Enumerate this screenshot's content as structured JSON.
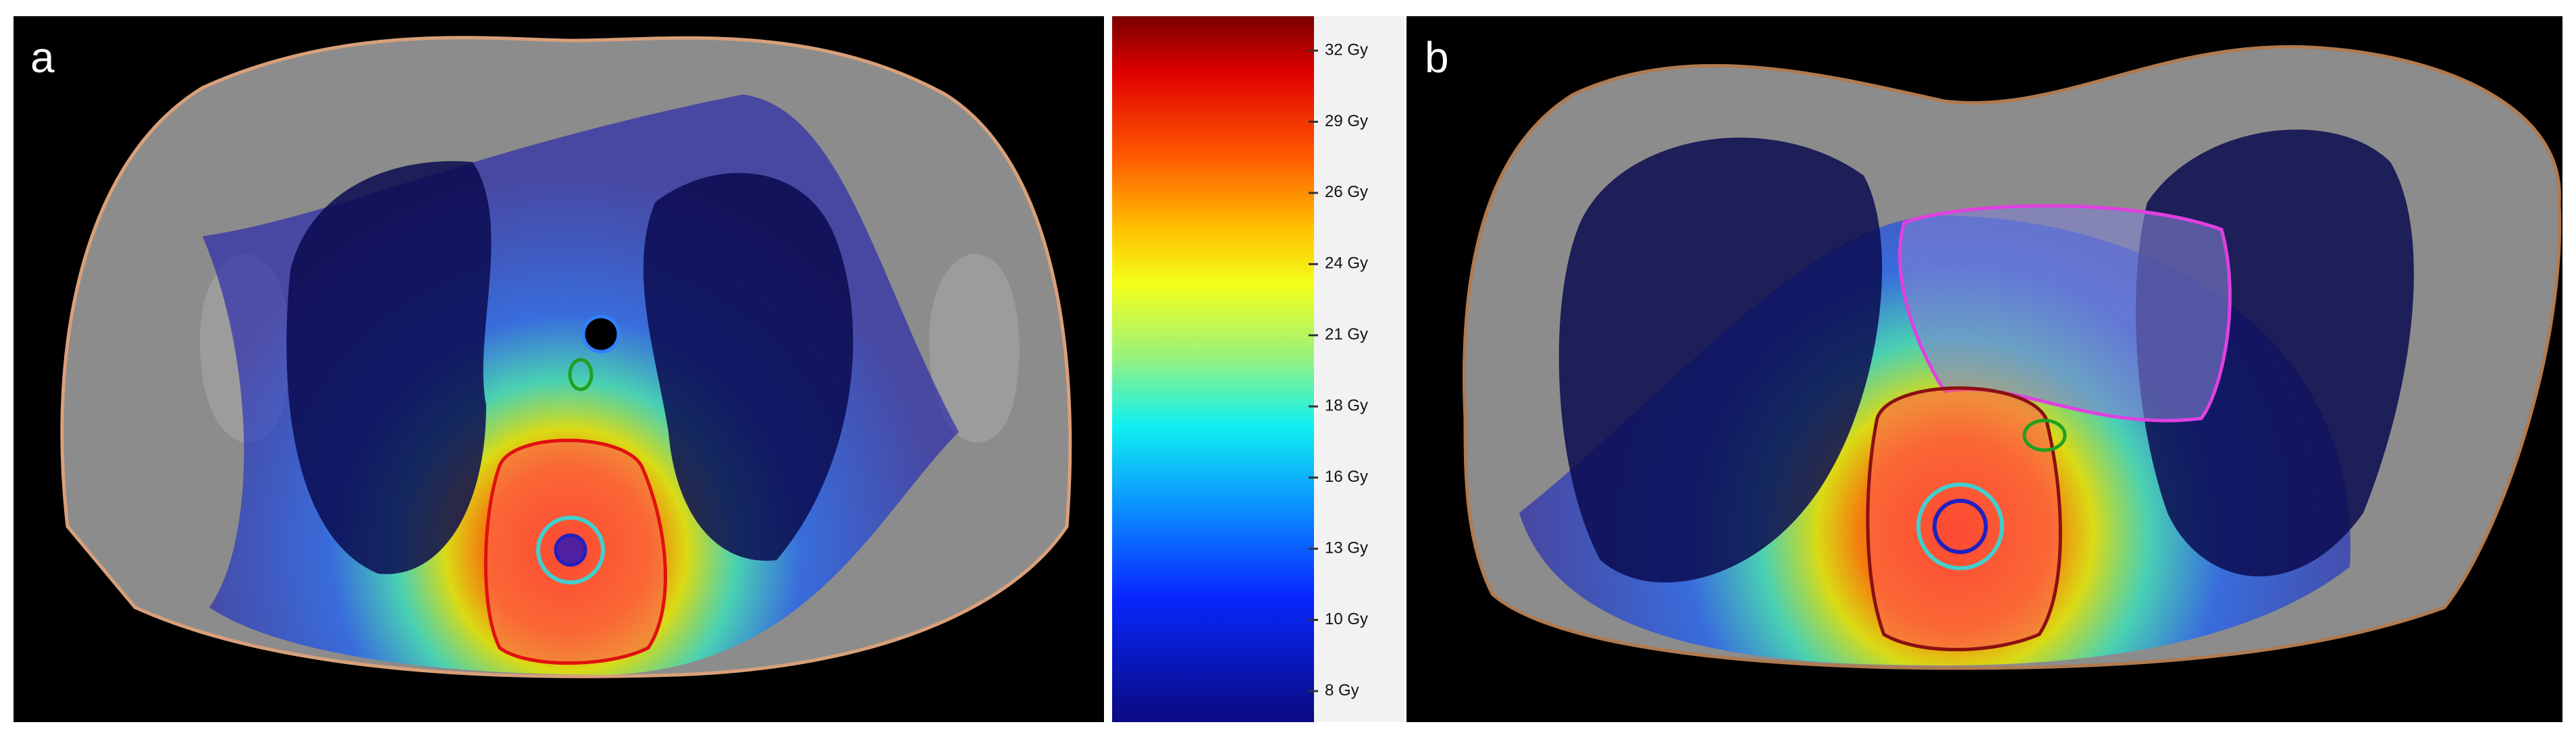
{
  "panels": [
    {
      "label": "a"
    },
    {
      "label": "b"
    }
  ],
  "colorbar": {
    "labels": [
      "32 Gy",
      "29 Gy",
      "26 Gy",
      "24 Gy",
      "21 Gy",
      "18 Gy",
      "16 Gy",
      "13 Gy",
      "10 Gy",
      "8 Gy"
    ]
  }
}
